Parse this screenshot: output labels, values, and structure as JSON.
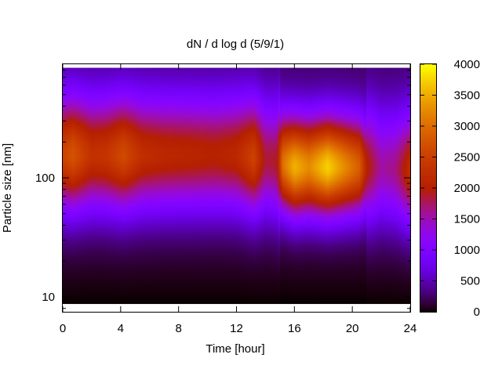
{
  "chart_data": {
    "type": "heatmap",
    "title": "dN / d log d (5/9/1)",
    "xlabel": "Time [hour]",
    "ylabel": "Particle size [nm]",
    "xlim": [
      0,
      24
    ],
    "ylim": [
      7.5,
      900
    ],
    "y_scale": "log",
    "x_ticks": [
      0,
      4,
      8,
      12,
      16,
      20,
      24
    ],
    "x_tick_labels": [
      "0",
      "4",
      "8",
      "12",
      "16",
      "20",
      "24"
    ],
    "y_ticks": [
      10,
      100
    ],
    "y_tick_labels": [
      "10",
      "100"
    ],
    "colorbar": {
      "min": 0,
      "max": 4000,
      "ticks": [
        0,
        500,
        1000,
        1500,
        2000,
        2500,
        3000,
        3500,
        4000
      ],
      "tick_labels": [
        "0",
        "500",
        "1000",
        "1500",
        "2000",
        "2500",
        "3000",
        "3500",
        "4000"
      ],
      "colormap": "black-purple-red-orange-yellow"
    },
    "data_bottom_diameter_nm": 8.8,
    "data_top_diameter_nm": 840,
    "mode_diameter_nm": [
      {
        "hour": 0,
        "d": 150
      },
      {
        "hour": 4,
        "d": 150
      },
      {
        "hour": 8,
        "d": 150
      },
      {
        "hour": 12,
        "d": 150
      },
      {
        "hour": 15,
        "d": 130
      },
      {
        "hour": 16,
        "d": 120
      },
      {
        "hour": 18,
        "d": 120
      },
      {
        "hour": 20,
        "d": 120
      },
      {
        "hour": 21,
        "d": 120
      },
      {
        "hour": 24,
        "d": 110
      }
    ],
    "mode_peak_dNdlogd": [
      {
        "hour": 0,
        "v": 2300
      },
      {
        "hour": 0.7,
        "v": 2500
      },
      {
        "hour": 2,
        "v": 2050
      },
      {
        "hour": 3,
        "v": 2100
      },
      {
        "hour": 4.2,
        "v": 2400
      },
      {
        "hour": 5.5,
        "v": 2000
      },
      {
        "hour": 7,
        "v": 1900
      },
      {
        "hour": 9,
        "v": 1850
      },
      {
        "hour": 10.5,
        "v": 1800
      },
      {
        "hour": 12,
        "v": 1900
      },
      {
        "hour": 13.2,
        "v": 2300
      },
      {
        "hour": 14,
        "v": 1600
      },
      {
        "hour": 14.8,
        "v": 1650
      },
      {
        "hour": 15.2,
        "v": 2800
      },
      {
        "hour": 16,
        "v": 3300
      },
      {
        "hour": 17,
        "v": 3000
      },
      {
        "hour": 18.3,
        "v": 3500
      },
      {
        "hour": 19.5,
        "v": 3000
      },
      {
        "hour": 20.5,
        "v": 2600
      },
      {
        "hour": 21,
        "v": 1800
      },
      {
        "hour": 22,
        "v": 1300
      },
      {
        "hour": 23,
        "v": 1400
      },
      {
        "hour": 24,
        "v": 2000
      }
    ]
  }
}
